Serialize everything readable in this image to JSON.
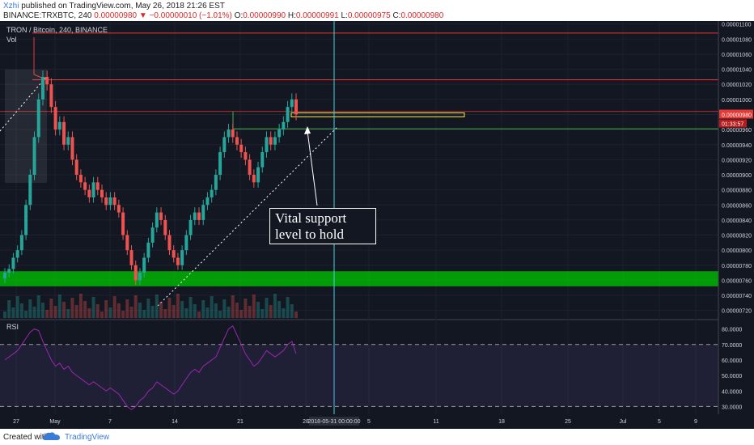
{
  "header": {
    "author": "Xzhi",
    "published_text": " published on TradingView.com, May 26, 2018 21:26 EST",
    "symbol_line": "BINANCE:TRXBTC, 240",
    "price": "0.00000980",
    "change": "−0.00000010 (−1.01%)",
    "o_label": "O:",
    "o_value": "0.00000990",
    "h_label": "H:",
    "h_value": "0.00000991",
    "l_label": "L:",
    "l_value": "0.00000975",
    "c_label": "C:",
    "c_value": "0.00000980"
  },
  "legend": {
    "title": "TRON / Bitcoin, 240, BINANCE",
    "vol": "Vol",
    "rsi": "RSI"
  },
  "annotation": {
    "line1": "Vital support",
    "line2": "level to hold"
  },
  "price_badge": {
    "price": "0.00000980",
    "countdown": "01:33:57"
  },
  "crosshair_date": "2018-05-31 00:00:00",
  "footer": {
    "created": "Created with",
    "brand": "TradingView"
  },
  "colors": {
    "background": "#131722",
    "up": "#26a69a",
    "down": "#ef5350",
    "rsi_line": "#9c27b0",
    "support_zone": "#00c800",
    "resistance_line": "#e53935",
    "highlight_box": "#ffeb3b",
    "badge": "#e53935"
  },
  "chart_data": {
    "type": "candlestick",
    "y_ticks": [
      "0.00001100",
      "0.00001080",
      "0.00001060",
      "0.00001040",
      "0.00001020",
      "0.00001000",
      "0.00000980",
      "0.00000960",
      "0.00000940",
      "0.00000920",
      "0.00000900",
      "0.00000880",
      "0.00000860",
      "0.00000840",
      "0.00000820",
      "0.00000800",
      "0.00000780",
      "0.00000760",
      "0.00000740",
      "0.00000720"
    ],
    "ylim": [
      7.1e-06,
      1.104e-05
    ],
    "x_ticks": [
      "27",
      "May",
      "7",
      "14",
      "21",
      "28",
      "5",
      "11",
      "18",
      "25",
      "Jul",
      "5",
      "9"
    ],
    "price_close": [
      7.7e-06,
      7.75e-06,
      7.9e-06,
      8e-06,
      8.2e-06,
      8.6e-06,
      9e-06,
      9.5e-06,
      1e-05,
      1.03e-05,
      1.02e-05,
      9.9e-06,
      9.6e-06,
      9.7e-06,
      9.4e-06,
      9.5e-06,
      9.2e-06,
      9e-06,
      8.9e-06,
      8.8e-06,
      8.7e-06,
      8.9e-06,
      8.8e-06,
      8.7e-06,
      8.6e-06,
      8.7e-06,
      8.6e-06,
      8.5e-06,
      8.2e-06,
      8e-06,
      7.8e-06,
      7.6e-06,
      7.7e-06,
      7.9e-06,
      8.1e-06,
      8.3e-06,
      8.5e-06,
      8.4e-06,
      8.2e-06,
      8e-06,
      7.9e-06,
      7.8e-06,
      8e-06,
      8.2e-06,
      8.4e-06,
      8.5e-06,
      8.4e-06,
      8.6e-06,
      8.7e-06,
      8.8e-06,
      9e-06,
      9.3e-06,
      9.5e-06,
      9.6e-06,
      9.5e-06,
      9.4e-06,
      9.3e-06,
      9.2e-06,
      9e-06,
      8.9e-06,
      9.1e-06,
      9.3e-06,
      9.5e-06,
      9.4e-06,
      9.5e-06,
      9.6e-06,
      9.7e-06,
      9.9e-06,
      1e-05,
      9.8e-06
    ],
    "rsi_ticks": [
      "80.0000",
      "70.0000",
      "60.0000",
      "50.0000",
      "40.0000",
      "30.0000"
    ],
    "rsi_lim": [
      25,
      85
    ],
    "rsi_levels": [
      70,
      30
    ],
    "rsi": [
      60,
      62,
      64,
      66,
      70,
      74,
      78,
      80,
      79,
      72,
      66,
      60,
      56,
      58,
      54,
      56,
      52,
      50,
      48,
      46,
      44,
      46,
      44,
      42,
      40,
      42,
      40,
      38,
      34,
      30,
      28,
      30,
      34,
      36,
      40,
      42,
      46,
      44,
      42,
      40,
      38,
      40,
      44,
      48,
      52,
      54,
      52,
      56,
      58,
      60,
      62,
      68,
      74,
      80,
      82,
      76,
      70,
      64,
      60,
      56,
      58,
      62,
      66,
      64,
      62,
      64,
      66,
      70,
      72,
      64
    ],
    "support_zone": [
      7.52e-06,
      7.72e-06
    ],
    "resistance_lines": [
      1.088e-05,
      1.026e-05
    ],
    "highlight_box": [
      9.78e-06,
      9.81e-06
    ],
    "support_lines": [
      9.84e-06,
      9.61e-06
    ]
  }
}
